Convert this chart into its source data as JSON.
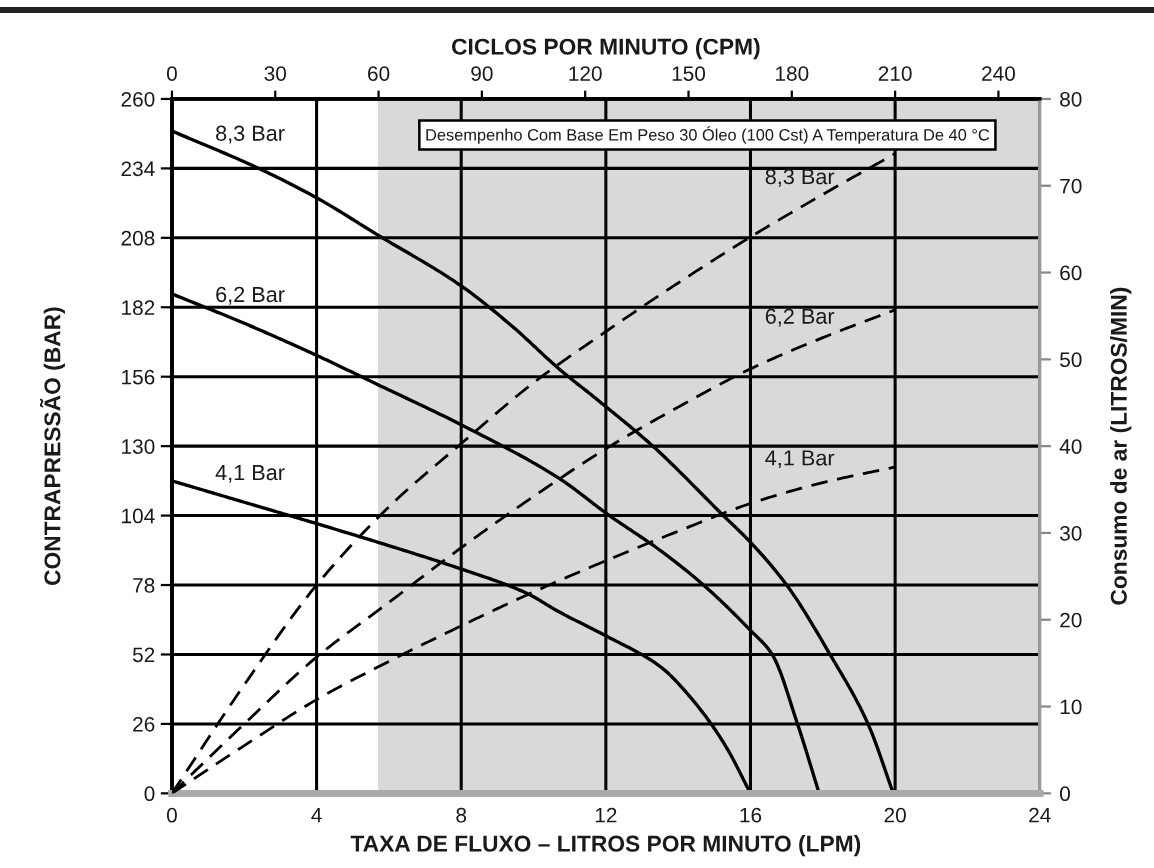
{
  "chart_data": {
    "type": "line",
    "xlabel": "TAXA DE FLUXO – LITROS POR MINUTO (LPM)",
    "ylabel": "CONTRAPRESSÃO (BAR)",
    "y2label": "Consumo de ar (LITROS/MIN)",
    "x2label": "CICLOS POR MINUTO (CPM)",
    "annotations": [
      "Desempenho Com Base Em Peso 30 Óleo (100 Cst) A Temperatura De 40 °C"
    ],
    "xlim": [
      0,
      24
    ],
    "xticks": [
      0,
      4,
      8,
      12,
      16,
      20,
      24
    ],
    "ylim": [
      0,
      260
    ],
    "yticks": [
      0,
      26,
      52,
      78,
      104,
      130,
      156,
      182,
      208,
      234,
      260
    ],
    "y2lim": [
      0,
      80
    ],
    "y2ticks": [
      0,
      10,
      20,
      30,
      40,
      50,
      60,
      70,
      80
    ],
    "x2lim": [
      0,
      252
    ],
    "x2ticks": [
      0,
      30,
      60,
      90,
      120,
      150,
      180,
      210,
      240
    ],
    "grid": true,
    "bands": [
      {
        "axis": "x",
        "from": 5.7,
        "to": 24,
        "color": "#d9d9d9"
      }
    ],
    "series": [
      {
        "name": "8,3 Bar",
        "color": "#000000",
        "line_style": "solid",
        "x": [
          0,
          2.4,
          4,
          5.7,
          8,
          9.4,
          10.7,
          11.8,
          13.3,
          15.25,
          16,
          17,
          18.2,
          19.25,
          19.95
        ],
        "values": [
          248,
          234,
          223,
          209,
          190,
          175,
          159,
          147,
          130,
          104,
          94,
          78,
          52,
          26,
          0
        ]
      },
      {
        "name": "6,2 Bar",
        "color": "#000000",
        "line_style": "solid",
        "x": [
          0,
          2,
          4,
          5.7,
          8,
          10.7,
          12.1,
          13.5,
          14.7,
          16,
          16.6,
          17.3,
          17.9
        ],
        "values": [
          187,
          176,
          164,
          153,
          138,
          118,
          104,
          91,
          78,
          61,
          52,
          26,
          0
        ]
      },
      {
        "name": "4,1 Bar",
        "color": "#000000",
        "line_style": "solid",
        "x": [
          0,
          2,
          4,
          5.7,
          8,
          9.8,
          10.7,
          12,
          13.5,
          14.4,
          15.3,
          16
        ],
        "values": [
          117,
          109,
          101,
          94,
          84,
          75,
          68,
          59,
          47.5,
          35,
          18,
          0
        ]
      },
      {
        "name": "8,3 Bar",
        "color": "#000000",
        "line_style": "dashed",
        "axis": "y2",
        "x": [
          0,
          2,
          4,
          6,
          8,
          10,
          12,
          14,
          16,
          18,
          20
        ],
        "values": [
          0,
          12.5,
          24,
          33,
          40.3,
          47.3,
          53.2,
          58.8,
          64.1,
          69,
          73.7
        ]
      },
      {
        "name": "6,2 Bar",
        "color": "#000000",
        "line_style": "dashed",
        "axis": "y2",
        "x": [
          0,
          2,
          4,
          6,
          8,
          10,
          12,
          14,
          16,
          18,
          20
        ],
        "values": [
          0,
          8,
          15.7,
          22,
          28.3,
          34.2,
          39.7,
          44.5,
          48.9,
          52.5,
          55.7
        ]
      },
      {
        "name": "4,1 Bar",
        "color": "#000000",
        "line_style": "dashed",
        "axis": "y2",
        "x": [
          0,
          2,
          4,
          6,
          8,
          10,
          12,
          14,
          16,
          18,
          20
        ],
        "values": [
          0,
          5.5,
          10.8,
          15.2,
          19.3,
          23.2,
          26.8,
          30.2,
          33.4,
          35.8,
          37.6
        ]
      }
    ]
  }
}
